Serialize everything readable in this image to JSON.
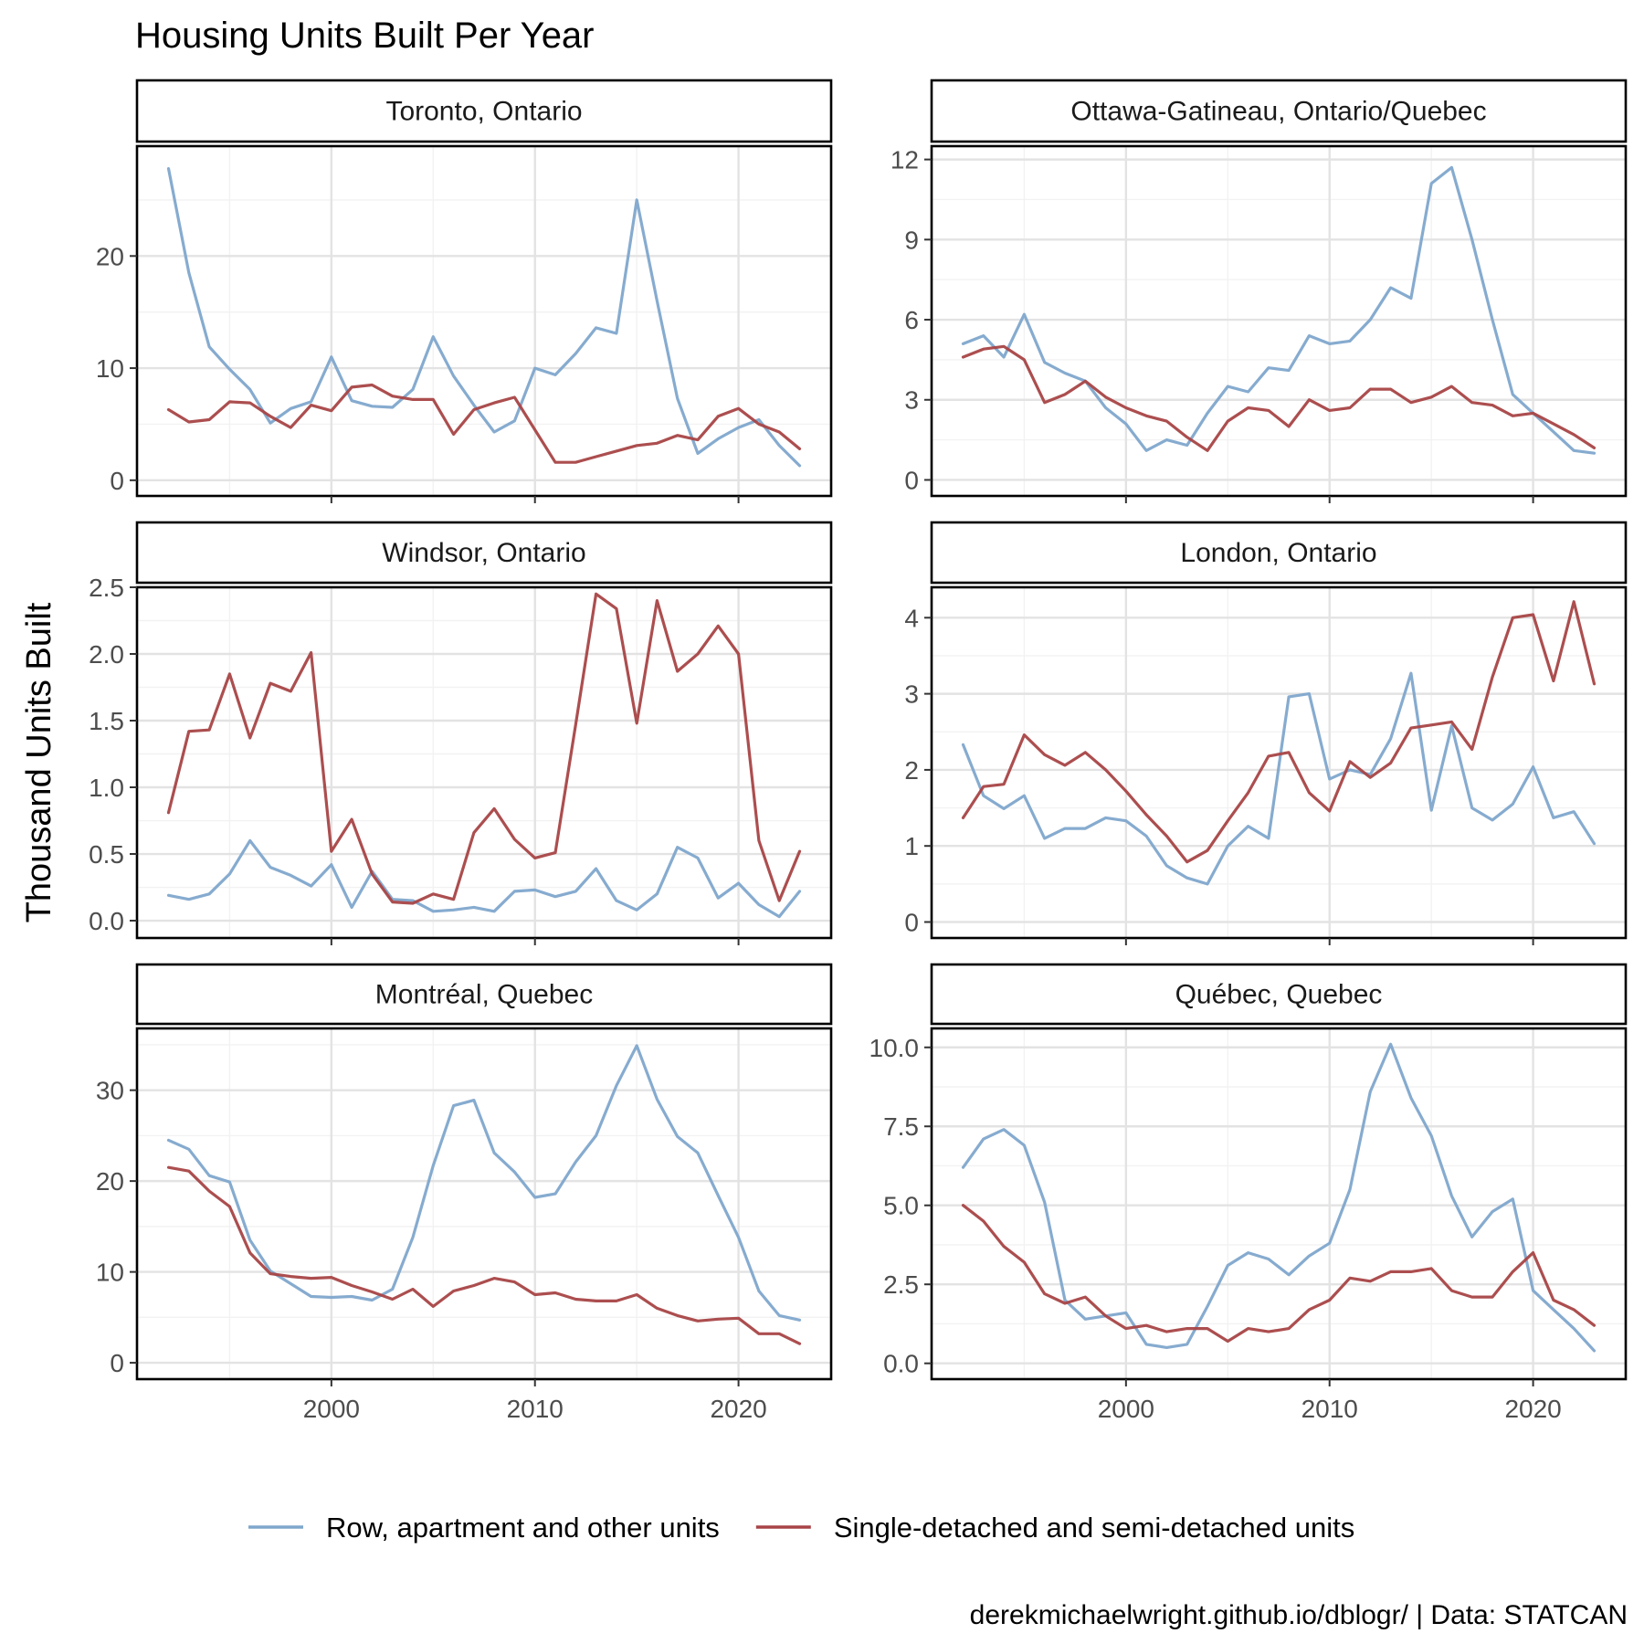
{
  "chart_data": {
    "type": "line",
    "title": "Housing Units Built Per Year",
    "ylabel": "Thousand Units Built",
    "xlabel": "",
    "caption": "derekmichaelwright.github.io/dblogr/ | Data: STATCAN",
    "grid": true,
    "legend_position": "bottom",
    "x": [
      1992,
      1993,
      1994,
      1995,
      1996,
      1997,
      1998,
      1999,
      2000,
      2001,
      2002,
      2003,
      2004,
      2005,
      2006,
      2007,
      2008,
      2009,
      2010,
      2011,
      2012,
      2013,
      2014,
      2015,
      2016,
      2017,
      2018,
      2019,
      2020,
      2021,
      2022,
      2023
    ],
    "x_ticks": [
      2000,
      2010,
      2020
    ],
    "x_tick_labels": [
      "2000",
      "2010",
      "2020"
    ],
    "xlim": [
      1990.45,
      2024.55
    ],
    "series_legend": [
      {
        "name": "Row, apartment and other units",
        "color": "#7FA7CC"
      },
      {
        "name": "Single-detached and semi-detached units",
        "color": "#A84446"
      }
    ],
    "panels": [
      {
        "title": "Toronto, Ontario",
        "ylim": [
          -1.4,
          29.8
        ],
        "y_ticks": [
          0,
          10,
          20
        ],
        "y_tick_labels": [
          "0",
          "10",
          "20"
        ],
        "series": [
          {
            "name": "Row, apartment and other units",
            "values": [
              27.8,
              18.5,
              11.9,
              9.9,
              8.1,
              5.1,
              6.4,
              7.0,
              11.0,
              7.1,
              6.6,
              6.5,
              8.1,
              12.8,
              9.3,
              6.7,
              4.3,
              5.3,
              10.0,
              9.4,
              11.3,
              13.6,
              13.1,
              25.0,
              16.0,
              7.3,
              2.4,
              3.7,
              4.7,
              5.4,
              3.1,
              1.3
            ]
          },
          {
            "name": "Single-detached and semi-detached units",
            "values": [
              6.3,
              5.2,
              5.4,
              7.0,
              6.9,
              5.7,
              4.7,
              6.7,
              6.2,
              8.3,
              8.5,
              7.5,
              7.2,
              7.2,
              4.1,
              6.3,
              6.9,
              7.4,
              4.5,
              1.6,
              1.6,
              2.1,
              2.6,
              3.1,
              3.3,
              4.0,
              3.6,
              5.7,
              6.4,
              5.0,
              4.3,
              2.8
            ]
          }
        ]
      },
      {
        "title": "Ottawa-Gatineau, Ontario/Quebec",
        "ylim": [
          -0.6,
          12.5
        ],
        "y_ticks": [
          0,
          3,
          6,
          9,
          12
        ],
        "y_tick_labels": [
          "0",
          "3",
          "6",
          "9",
          "12"
        ],
        "series": [
          {
            "name": "Row, apartment and other units",
            "values": [
              5.1,
              5.4,
              4.6,
              6.2,
              4.4,
              4.0,
              3.7,
              2.7,
              2.1,
              1.1,
              1.5,
              1.3,
              2.5,
              3.5,
              3.3,
              4.2,
              4.1,
              5.4,
              5.1,
              5.2,
              6.0,
              7.2,
              6.8,
              11.1,
              11.7,
              9.0,
              6.0,
              3.2,
              2.5,
              1.8,
              1.1,
              1.0
            ]
          },
          {
            "name": "Single-detached and semi-detached units",
            "values": [
              4.6,
              4.9,
              5.0,
              4.5,
              2.9,
              3.2,
              3.7,
              3.1,
              2.7,
              2.4,
              2.2,
              1.6,
              1.1,
              2.2,
              2.7,
              2.6,
              2.0,
              3.0,
              2.6,
              2.7,
              3.4,
              3.4,
              2.9,
              3.1,
              3.5,
              2.9,
              2.8,
              2.4,
              2.5,
              2.1,
              1.7,
              1.2
            ]
          }
        ]
      },
      {
        "title": "Windsor, Ontario",
        "ylim": [
          -0.13,
          2.5
        ],
        "y_ticks": [
          0.0,
          0.5,
          1.0,
          1.5,
          2.0,
          2.5
        ],
        "y_tick_labels": [
          "0.0",
          "0.5",
          "1.0",
          "1.5",
          "2.0",
          "2.5"
        ],
        "series": [
          {
            "name": "Row, apartment and other units",
            "values": [
              0.19,
              0.16,
              0.2,
              0.35,
              0.6,
              0.4,
              0.34,
              0.26,
              0.42,
              0.1,
              0.37,
              0.16,
              0.15,
              0.07,
              0.08,
              0.1,
              0.07,
              0.22,
              0.23,
              0.18,
              0.22,
              0.39,
              0.15,
              0.08,
              0.2,
              0.55,
              0.47,
              0.17,
              0.28,
              0.12,
              0.03,
              0.22
            ]
          },
          {
            "name": "Single-detached and semi-detached units",
            "values": [
              0.81,
              1.42,
              1.43,
              1.85,
              1.37,
              1.78,
              1.72,
              2.01,
              0.52,
              0.76,
              0.35,
              0.14,
              0.13,
              0.2,
              0.16,
              0.66,
              0.84,
              0.61,
              0.47,
              0.51,
              1.47,
              2.45,
              2.34,
              1.48,
              2.4,
              1.87,
              2.0,
              2.21,
              2.0,
              0.6,
              0.15,
              0.52
            ]
          }
        ]
      },
      {
        "title": "London, Ontario",
        "ylim": [
          -0.21,
          4.4
        ],
        "y_ticks": [
          0,
          1,
          2,
          3,
          4
        ],
        "y_tick_labels": [
          "0",
          "1",
          "2",
          "3",
          "4"
        ],
        "series": [
          {
            "name": "Row, apartment and other units",
            "values": [
              2.33,
              1.66,
              1.49,
              1.66,
              1.1,
              1.23,
              1.23,
              1.37,
              1.33,
              1.13,
              0.74,
              0.58,
              0.5,
              1.0,
              1.26,
              1.1,
              2.96,
              3.0,
              1.88,
              2.0,
              1.94,
              2.41,
              3.27,
              1.47,
              2.58,
              1.5,
              1.34,
              1.55,
              2.04,
              1.37,
              1.45,
              1.03
            ]
          },
          {
            "name": "Single-detached and semi-detached units",
            "values": [
              1.37,
              1.78,
              1.81,
              2.46,
              2.2,
              2.06,
              2.23,
              2.0,
              1.72,
              1.41,
              1.13,
              0.79,
              0.94,
              1.33,
              1.7,
              2.18,
              2.23,
              1.7,
              1.46,
              2.11,
              1.9,
              2.09,
              2.55,
              2.59,
              2.63,
              2.27,
              3.22,
              4.0,
              4.04,
              3.17,
              4.21,
              3.13
            ]
          }
        ]
      },
      {
        "title": "Montréal, Quebec",
        "ylim": [
          -1.8,
          36.8
        ],
        "y_ticks": [
          0,
          10,
          20,
          30
        ],
        "y_tick_labels": [
          "0",
          "10",
          "20",
          "30"
        ],
        "series": [
          {
            "name": "Row, apartment and other units",
            "values": [
              24.5,
              23.5,
              20.6,
              19.9,
              13.5,
              10.1,
              8.7,
              7.3,
              7.2,
              7.3,
              6.9,
              8.1,
              13.8,
              21.7,
              28.3,
              28.9,
              23.1,
              21.0,
              18.2,
              18.6,
              22.1,
              25.0,
              30.5,
              34.9,
              29.0,
              24.9,
              23.1,
              18.4,
              13.8,
              7.9,
              5.2,
              4.7
            ]
          },
          {
            "name": "Single-detached and semi-detached units",
            "values": [
              21.5,
              21.1,
              18.9,
              17.2,
              12.1,
              9.8,
              9.5,
              9.3,
              9.4,
              8.5,
              7.8,
              7.0,
              8.1,
              6.2,
              7.9,
              8.5,
              9.3,
              8.9,
              7.5,
              7.7,
              7.0,
              6.8,
              6.8,
              7.5,
              6.0,
              5.2,
              4.6,
              4.8,
              4.9,
              3.2,
              3.2,
              2.1
            ]
          }
        ]
      },
      {
        "title": "Québec, Quebec",
        "ylim": [
          -0.5,
          10.6
        ],
        "y_ticks": [
          0.0,
          2.5,
          5.0,
          7.5,
          10.0
        ],
        "y_tick_labels": [
          "0.0",
          "2.5",
          "5.0",
          "7.5",
          "10.0"
        ],
        "series": [
          {
            "name": "Row, apartment and other units",
            "values": [
              6.2,
              7.1,
              7.4,
              6.9,
              5.1,
              2.0,
              1.4,
              1.5,
              1.6,
              0.6,
              0.5,
              0.6,
              1.8,
              3.1,
              3.5,
              3.3,
              2.8,
              3.4,
              3.8,
              5.5,
              8.6,
              10.1,
              8.4,
              7.2,
              5.3,
              4.0,
              4.8,
              5.2,
              2.3,
              1.7,
              1.1,
              0.4
            ]
          },
          {
            "name": "Single-detached and semi-detached units",
            "values": [
              5.0,
              4.5,
              3.7,
              3.2,
              2.2,
              1.9,
              2.1,
              1.5,
              1.1,
              1.2,
              1.0,
              1.1,
              1.1,
              0.7,
              1.1,
              1.0,
              1.1,
              1.7,
              2.0,
              2.7,
              2.6,
              2.9,
              2.9,
              3.0,
              2.3,
              2.1,
              2.1,
              2.9,
              3.5,
              2.0,
              1.7,
              1.2
            ]
          }
        ]
      }
    ]
  }
}
